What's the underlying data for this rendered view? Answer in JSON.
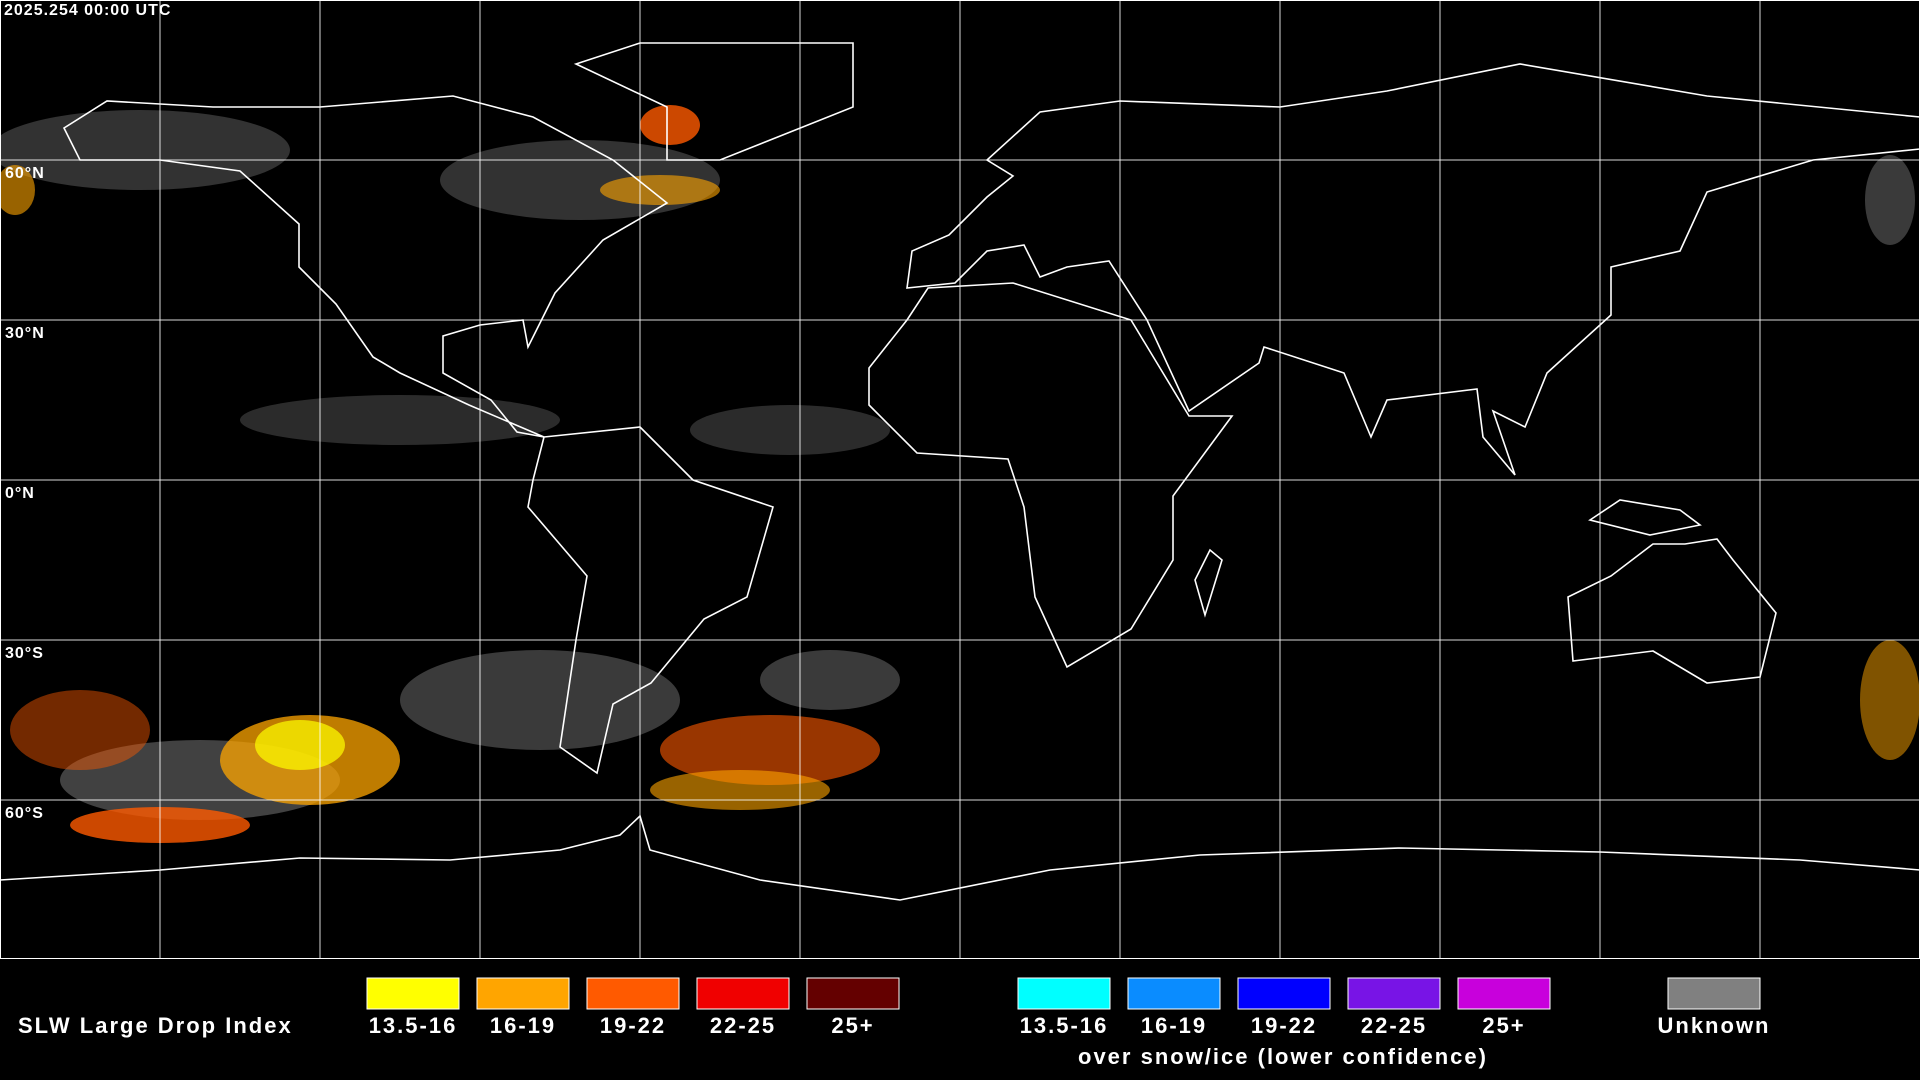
{
  "header": {
    "timestamp": "2025.254 00:00 UTC"
  },
  "map": {
    "latitude_labels": [
      "60°N",
      "30°N",
      "0°N",
      "30°S",
      "60°S"
    ]
  },
  "legend": {
    "title": "SLW Large Drop Index",
    "items": [
      {
        "label": "13.5-16",
        "color": "#ffff00"
      },
      {
        "label": "16-19",
        "color": "#ffa500"
      },
      {
        "label": "19-22",
        "color": "#ff5a00"
      },
      {
        "label": "22-25",
        "color": "#f00000"
      },
      {
        "label": "25+",
        "color": "#640000"
      }
    ],
    "snow_items": [
      {
        "label": "13.5-16",
        "color": "#00ffff"
      },
      {
        "label": "16-19",
        "color": "#0a8cff"
      },
      {
        "label": "19-22",
        "color": "#0000ff"
      },
      {
        "label": "22-25",
        "color": "#7814e6"
      },
      {
        "label": "25+",
        "color": "#c800dc"
      }
    ],
    "snow_caption": "over snow/ice (lower confidence)",
    "unknown": {
      "label": "Unknown",
      "color": "#808080"
    }
  }
}
